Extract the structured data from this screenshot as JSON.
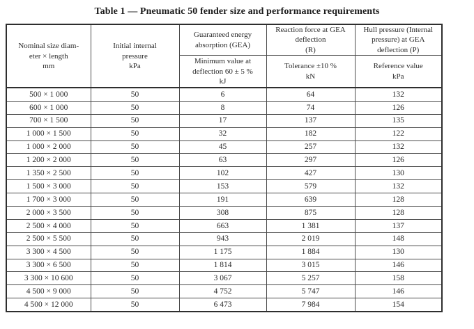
{
  "title": "Table 1 — Pneumatic 50 fender size and performance requirements",
  "table": {
    "header": {
      "nominal_size": "Nominal size diam-\neter × length\nmm",
      "initial_pressure": "Initial internal\npressure\nkPa",
      "gea_group": "Guaranteed energy\nabsorption (GEA)",
      "gea_sub": "Minimum value at\ndeflection 60 ± 5 %\nkJ",
      "reaction_group": "Reaction force at GEA\ndeflection\n(R)",
      "reaction_sub": "Tolerance ±10 %\nkN",
      "hull_group": "Hull pressure (Internal\npressure) at GEA\ndeflection (P)",
      "hull_sub": "Reference value\nkPa"
    },
    "rows": [
      [
        "500 × 1 000",
        "50",
        "6",
        "64",
        "132"
      ],
      [
        "600 × 1 000",
        "50",
        "8",
        "74",
        "126"
      ],
      [
        "700 × 1 500",
        "50",
        "17",
        "137",
        "135"
      ],
      [
        "1 000 × 1 500",
        "50",
        "32",
        "182",
        "122"
      ],
      [
        "1 000 × 2 000",
        "50",
        "45",
        "257",
        "132"
      ],
      [
        "1 200 × 2 000",
        "50",
        "63",
        "297",
        "126"
      ],
      [
        "1 350 × 2 500",
        "50",
        "102",
        "427",
        "130"
      ],
      [
        "1 500 × 3 000",
        "50",
        "153",
        "579",
        "132"
      ],
      [
        "1 700 × 3 000",
        "50",
        "191",
        "639",
        "128"
      ],
      [
        "2 000 × 3 500",
        "50",
        "308",
        "875",
        "128"
      ],
      [
        "2 500 × 4 000",
        "50",
        "663",
        "1 381",
        "137"
      ],
      [
        "2 500 × 5 500",
        "50",
        "943",
        "2 019",
        "148"
      ],
      [
        "3 300 × 4 500",
        "50",
        "1 175",
        "1 884",
        "130"
      ],
      [
        "3 300 × 6 500",
        "50",
        "1 814",
        "3 015",
        "146"
      ],
      [
        "3 300 × 10 600",
        "50",
        "3 067",
        "5 257",
        "158"
      ],
      [
        "4 500 × 9 000",
        "50",
        "4 752",
        "5 747",
        "146"
      ],
      [
        "4 500 × 12 000",
        "50",
        "6 473",
        "7 984",
        "154"
      ]
    ]
  }
}
